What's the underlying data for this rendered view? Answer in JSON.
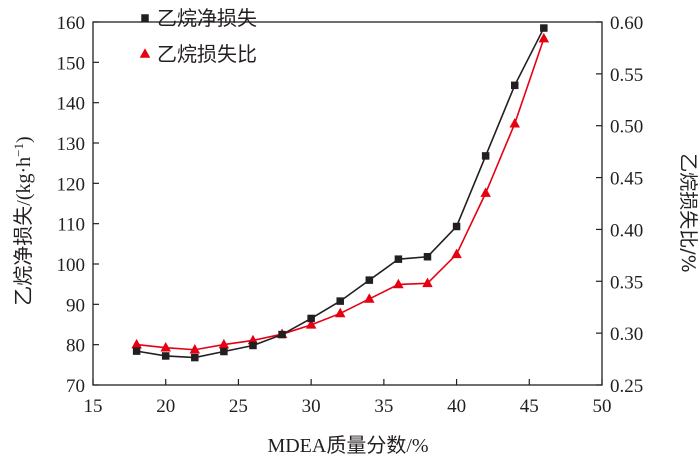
{
  "chart_data": {
    "type": "line",
    "x": [
      18,
      20,
      22,
      24,
      26,
      28,
      30,
      32,
      34,
      36,
      38,
      40,
      42,
      44,
      46
    ],
    "xlabel": "MDEA质量分数/%",
    "ylabel": "乙烷净损失/(kg·h",
    "ylabel_sup": "−1",
    "ylabel_close": ")",
    "y2label": "乙烷损失比/%",
    "xlim": [
      15,
      50
    ],
    "ylim": [
      70,
      160
    ],
    "y2lim": [
      0.25,
      0.6
    ],
    "xticks": [
      "15",
      "20",
      "25",
      "30",
      "35",
      "40",
      "45",
      "50"
    ],
    "yticks": [
      "70",
      "80",
      "90",
      "100",
      "110",
      "120",
      "130",
      "140",
      "150",
      "160"
    ],
    "y2ticks": [
      "0.25",
      "0.30",
      "0.35",
      "0.40",
      "0.45",
      "0.50",
      "0.55",
      "0.60"
    ],
    "grid": false,
    "legend_position": "top-left",
    "series": [
      {
        "name": "乙烷净损失",
        "axis": "left",
        "marker": "square",
        "color": "#231f20",
        "values": [
          78.4,
          77.2,
          76.8,
          78.3,
          79.8,
          82.5,
          86.5,
          90.8,
          96.0,
          101.2,
          101.8,
          109.3,
          126.8,
          144.3,
          158.5
        ]
      },
      {
        "name": "乙烷损失比",
        "axis": "right",
        "marker": "triangle",
        "color": "#e60012",
        "values": [
          0.289,
          0.286,
          0.284,
          0.289,
          0.293,
          0.299,
          0.308,
          0.319,
          0.333,
          0.347,
          0.348,
          0.376,
          0.435,
          0.502,
          0.584
        ]
      }
    ]
  }
}
